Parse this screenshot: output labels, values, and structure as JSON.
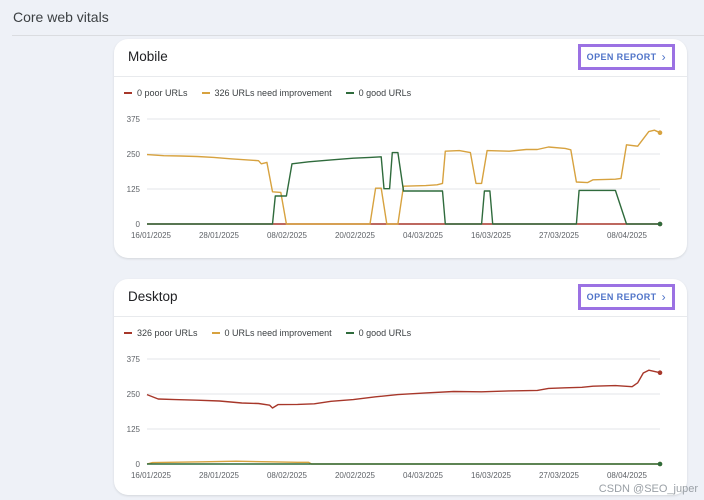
{
  "page": {
    "title": "Core web vitals",
    "watermark": "CSDN @SEO_juper"
  },
  "open_report_label": "OPEN REPORT",
  "colors": {
    "poor": "#a7372a",
    "needs_improvement": "#d7a23f",
    "good": "#2f6b3c",
    "accent": "#4f73c8",
    "highlight": "#9b71e3"
  },
  "chart_data": [
    {
      "type": "line",
      "title": "Mobile",
      "legend": [
        "0 poor URLs",
        "326 URLs need improvement",
        "0 good URLs"
      ],
      "y_ticks": [
        0,
        125,
        250,
        375
      ],
      "ylim": [
        0,
        375
      ],
      "x_tick_labels": [
        "16/01/2025",
        "28/01/2025",
        "08/02/2025",
        "20/02/2025",
        "04/03/2025",
        "16/03/2025",
        "27/03/2025",
        "08/04/2025"
      ],
      "xlim_days": [
        0,
        92
      ],
      "series": [
        {
          "name": "0 poor URLs",
          "color": "#a7372a",
          "points": [
            [
              0,
              0
            ],
            [
              92,
              0
            ]
          ]
        },
        {
          "name": "326 URLs need improvement",
          "color": "#d7a23f",
          "points": [
            [
              0,
              248
            ],
            [
              3,
              244
            ],
            [
              6,
              243
            ],
            [
              9,
              241
            ],
            [
              12,
              238
            ],
            [
              15,
              233
            ],
            [
              18,
              229
            ],
            [
              20,
              226
            ],
            [
              20.5,
              215
            ],
            [
              21.5,
              220
            ],
            [
              22.5,
              115
            ],
            [
              24,
              113
            ],
            [
              25,
              0
            ],
            [
              40,
              0
            ],
            [
              41,
              128
            ],
            [
              42,
              128
            ],
            [
              43,
              0
            ],
            [
              45,
              0
            ],
            [
              46,
              135
            ],
            [
              50,
              137
            ],
            [
              52,
              140
            ],
            [
              53,
              145
            ],
            [
              53.5,
              260
            ],
            [
              56,
              262
            ],
            [
              58,
              255
            ],
            [
              59,
              145
            ],
            [
              60,
              145
            ],
            [
              61,
              262
            ],
            [
              65,
              260
            ],
            [
              68,
              266
            ],
            [
              70,
              266
            ],
            [
              72,
              275
            ],
            [
              75,
              270
            ],
            [
              76,
              265
            ],
            [
              77,
              150
            ],
            [
              79,
              148
            ],
            [
              80,
              158
            ],
            [
              84,
              160
            ],
            [
              85,
              163
            ],
            [
              86,
              283
            ],
            [
              88,
              278
            ],
            [
              90,
              330
            ],
            [
              91,
              335
            ],
            [
              92,
              326
            ]
          ]
        },
        {
          "name": "0 good URLs",
          "color": "#2f6b3c",
          "points": [
            [
              0,
              0
            ],
            [
              22.5,
              0
            ],
            [
              23,
              100
            ],
            [
              25,
              100
            ],
            [
              26,
              215
            ],
            [
              29,
              222
            ],
            [
              33,
              229
            ],
            [
              37,
              235
            ],
            [
              40,
              238
            ],
            [
              42,
              240
            ],
            [
              42.5,
              126
            ],
            [
              43.5,
              126
            ],
            [
              44,
              255
            ],
            [
              45,
              255
            ],
            [
              46,
              118
            ],
            [
              50,
              118
            ],
            [
              53,
              118
            ],
            [
              53.5,
              0
            ],
            [
              60,
              0
            ],
            [
              60.5,
              118
            ],
            [
              61.5,
              118
            ],
            [
              62,
              0
            ],
            [
              77,
              0
            ],
            [
              77.5,
              120
            ],
            [
              84,
              120
            ],
            [
              86,
              0
            ],
            [
              92,
              0
            ]
          ]
        }
      ]
    },
    {
      "type": "line",
      "title": "Desktop",
      "legend": [
        "326 poor URLs",
        "0 URLs need improvement",
        "0 good URLs"
      ],
      "y_ticks": [
        0,
        125,
        250,
        375
      ],
      "ylim": [
        0,
        375
      ],
      "x_tick_labels": [
        "16/01/2025",
        "28/01/2025",
        "08/02/2025",
        "20/02/2025",
        "04/03/2025",
        "16/03/2025",
        "27/03/2025",
        "08/04/2025"
      ],
      "xlim_days": [
        0,
        92
      ],
      "series": [
        {
          "name": "326 poor URLs",
          "color": "#a7372a",
          "points": [
            [
              0,
              248
            ],
            [
              2,
              232
            ],
            [
              5,
              230
            ],
            [
              9,
              228
            ],
            [
              13,
              225
            ],
            [
              17,
              218
            ],
            [
              20,
              216
            ],
            [
              22,
              210
            ],
            [
              22.5,
              200
            ],
            [
              23.5,
              212
            ],
            [
              27,
              213
            ],
            [
              30,
              215
            ],
            [
              33,
              224
            ],
            [
              37,
              230
            ],
            [
              41,
              240
            ],
            [
              45,
              248
            ],
            [
              50,
              254
            ],
            [
              55,
              259
            ],
            [
              60,
              258
            ],
            [
              65,
              261
            ],
            [
              70,
              263
            ],
            [
              72,
              270
            ],
            [
              75,
              272
            ],
            [
              78,
              274
            ],
            [
              80,
              278
            ],
            [
              84,
              280
            ],
            [
              87,
              276
            ],
            [
              88,
              290
            ],
            [
              89,
              325
            ],
            [
              90,
              335
            ],
            [
              92,
              326
            ]
          ]
        },
        {
          "name": "0 URLs need improvement",
          "color": "#d7a23f",
          "points": [
            [
              0,
              0
            ],
            [
              1,
              5
            ],
            [
              10,
              8
            ],
            [
              16,
              10
            ],
            [
              22,
              8
            ],
            [
              27,
              6
            ],
            [
              29,
              6
            ],
            [
              29.5,
              0
            ],
            [
              92,
              0
            ]
          ]
        },
        {
          "name": "0 good URLs",
          "color": "#2f6b3c",
          "points": [
            [
              0,
              0
            ],
            [
              92,
              0
            ]
          ]
        }
      ]
    }
  ]
}
